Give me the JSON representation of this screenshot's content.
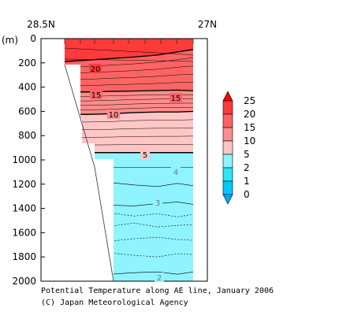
{
  "chart_data": {
    "type": "heatmap",
    "title": "Potential Temperature along AE line, January 2006",
    "credit": "(C) Japan Meteorological Agency",
    "x_ticks": [
      "28.5N",
      "27N"
    ],
    "y_unit": "(m)",
    "y_ticks": [
      "0",
      "200",
      "400",
      "600",
      "800",
      "1000",
      "1200",
      "1400",
      "1600",
      "1800",
      "2000"
    ],
    "ylim": [
      0,
      2000
    ],
    "colorbar": {
      "ticks": [
        "25",
        "20",
        "15",
        "10",
        "5",
        "2",
        "1",
        "0"
      ],
      "colors": [
        "#ff0000",
        "#ff3a3a",
        "#ff6464",
        "#ff8c8c",
        "#ffc6c6",
        "#8ff4ff",
        "#2ee6f6",
        "#00c8ff",
        "#00a8ff"
      ]
    },
    "contour_labels": [
      "20",
      "15",
      "15",
      "10",
      "5",
      "4",
      "3",
      "2"
    ],
    "isotherms": [
      {
        "value": 20,
        "depths": [
          190,
          178,
          165,
          152,
          135,
          110,
          90
        ]
      },
      {
        "value": 15,
        "depths": [
          440,
          440,
          435,
          432,
          428,
          425,
          430
        ]
      },
      {
        "value": 10,
        "depths": [
          620,
          625,
          620,
          610,
          605,
          605,
          600
        ]
      },
      {
        "value": 5,
        "depths": null,
        "depth": 940
      },
      {
        "value": 4,
        "depth": 1060
      },
      {
        "value": 3,
        "depth": 1360
      },
      {
        "value": 2,
        "depth": 1930
      }
    ]
  }
}
